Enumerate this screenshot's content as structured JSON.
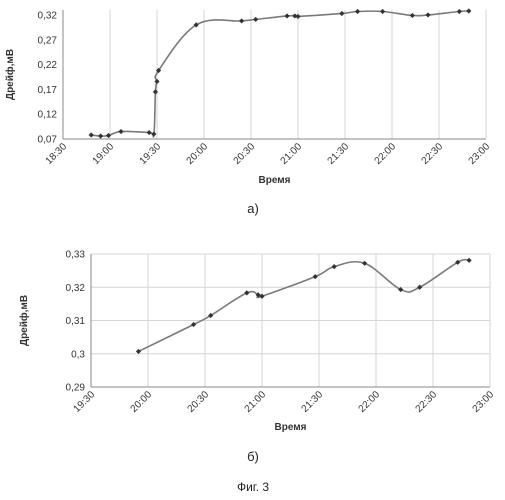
{
  "figure_caption": "Фиг. 3",
  "chart_data": [
    {
      "type": "line",
      "panel_label": "а)",
      "xlabel": "Время",
      "ylabel": "Дрейф,мВ",
      "xticks": [
        "18:30",
        "19:00",
        "19:30",
        "20:00",
        "20:30",
        "21:00",
        "21:30",
        "22:00",
        "22:30",
        "23:00"
      ],
      "yticks": [
        "0,07",
        "0,12",
        "0,17",
        "0,22",
        "0,27",
        "0,32"
      ],
      "xlim": [
        "18:30",
        "23:00"
      ],
      "ylim": [
        0.07,
        0.33
      ],
      "grid": "vertical",
      "series": [
        {
          "x": [
            "18:48",
            "18:54",
            "18:59",
            "19:07",
            "19:25",
            "19:28",
            "19:29",
            "19:30",
            "19:31",
            "19:55",
            "20:24",
            "20:33",
            "20:53",
            "20:58",
            "21:00",
            "21:28",
            "21:38",
            "21:54",
            "22:13",
            "22:23",
            "22:43",
            "22:49"
          ],
          "y": [
            0.078,
            0.076,
            0.077,
            0.085,
            0.083,
            0.08,
            0.165,
            0.186,
            0.208,
            0.3,
            0.308,
            0.311,
            0.318,
            0.318,
            0.317,
            0.323,
            0.327,
            0.327,
            0.319,
            0.32,
            0.327,
            0.328
          ]
        }
      ]
    },
    {
      "type": "line",
      "panel_label": "б)",
      "xlabel": "Время",
      "ylabel": "Дрейф,мВ",
      "xticks": [
        "19:30",
        "20:00",
        "20:30",
        "21:00",
        "21:30",
        "22:00",
        "22:30",
        "23:00"
      ],
      "yticks": [
        "0,29",
        "0,3",
        "0,31",
        "0,32",
        "0,33"
      ],
      "xlim": [
        "19:30",
        "23:00"
      ],
      "ylim": [
        0.29,
        0.33
      ],
      "grid": "both",
      "series": [
        {
          "x": [
            "19:55",
            "20:24",
            "20:33",
            "20:52",
            "20:58",
            "21:00",
            "21:28",
            "21:38",
            "21:54",
            "22:13",
            "22:23",
            "22:43",
            "22:49"
          ],
          "y": [
            0.3007,
            0.3088,
            0.3115,
            0.3183,
            0.3177,
            0.3173,
            0.3232,
            0.3262,
            0.3272,
            0.3193,
            0.32,
            0.3275,
            0.3281
          ]
        }
      ]
    }
  ]
}
